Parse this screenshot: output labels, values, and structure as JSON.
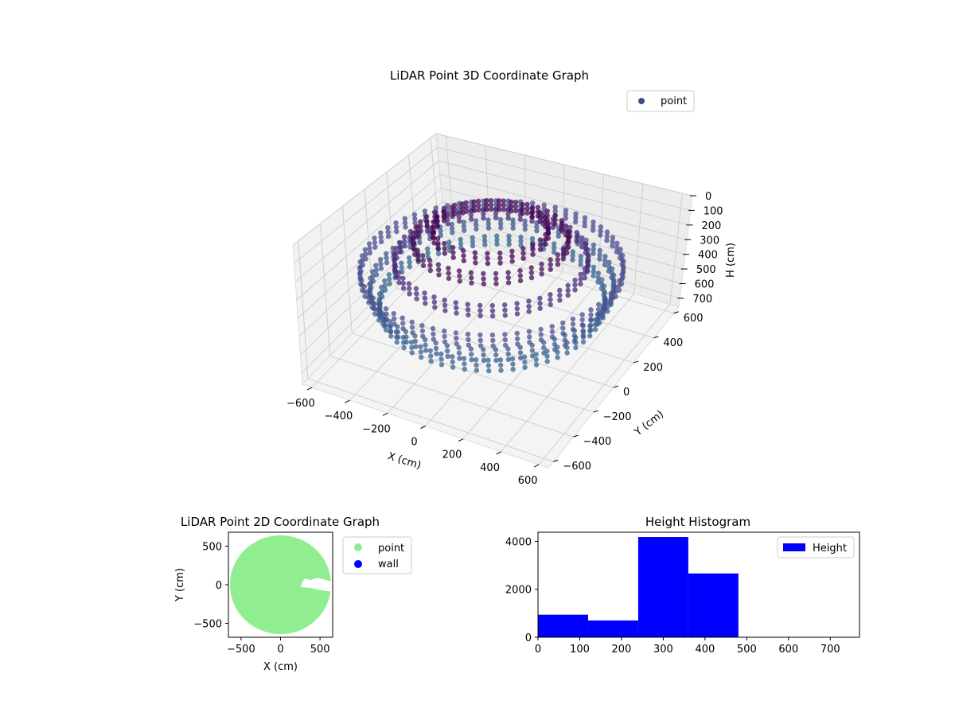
{
  "chart_data": [
    {
      "type": "scatter",
      "projection": "3d",
      "title": "LiDAR Point 3D Coordinate Graph",
      "xlabel": "X (cm)",
      "ylabel": "Y (cm)",
      "zlabel": "H (cm)",
      "xticks": [
        "−600",
        "−400",
        "−200",
        "0",
        "200",
        "400",
        "600"
      ],
      "yticks": [
        "−600",
        "−400",
        "−200",
        "0",
        "200",
        "400",
        "600"
      ],
      "zticks": [
        "0",
        "100",
        "200",
        "300",
        "400",
        "500",
        "600",
        "700"
      ],
      "xlim": [
        -650,
        650
      ],
      "ylim": [
        -650,
        650
      ],
      "zlim": [
        0,
        760
      ],
      "zaxis_inverted": true,
      "colormap": "viridis",
      "grid": true,
      "legend": {
        "placement": "top-right",
        "entries": [
          {
            "label": "point",
            "color": "#3b4b8c"
          }
        ]
      },
      "series": [
        {
          "name": "point",
          "shape": "ring",
          "rings": [
            {
              "r": 600,
              "h": 300,
              "color": "#4a4f8f"
            },
            {
              "r": 560,
              "h": 400,
              "color": "#3e5a8e"
            },
            {
              "r": 520,
              "h": 480,
              "color": "#35648d"
            },
            {
              "r": 440,
              "h": 240,
              "color": "#472c7a"
            },
            {
              "r": 350,
              "h": 120,
              "color": "#440f56"
            },
            {
              "r": 260,
              "h": 60,
              "color": "#440154"
            }
          ]
        }
      ]
    },
    {
      "type": "scatter",
      "title": "LiDAR Point 2D Coordinate Graph",
      "xlabel": "X (cm)",
      "ylabel": "Y (cm)",
      "xticks": [
        "−500",
        "0",
        "500"
      ],
      "yticks": [
        "500",
        "0",
        "−500"
      ],
      "xlim": [
        -660,
        660
      ],
      "ylim": [
        -680,
        680
      ],
      "legend": {
        "placement": "right",
        "entries": [
          {
            "label": "point",
            "color": "#90ee90"
          },
          {
            "label": "wall",
            "color": "#0000ff"
          }
        ]
      },
      "series": [
        {
          "name": "point",
          "shape": "filled-disk",
          "radius": 640,
          "color": "#90ee90"
        },
        {
          "name": "wall",
          "color": "#0000ff",
          "points": []
        }
      ]
    },
    {
      "type": "bar",
      "subtype": "histogram",
      "title": "Height Histogram",
      "xticks": [
        "0",
        "100",
        "200",
        "300",
        "400",
        "500",
        "600",
        "700"
      ],
      "yticks": [
        "0",
        "2000",
        "4000"
      ],
      "xlim": [
        0,
        770
      ],
      "ylim": [
        0,
        4380
      ],
      "bin_edges": [
        0,
        120,
        240,
        360,
        480
      ],
      "values": [
        940,
        700,
        4180,
        2660
      ],
      "color": "#0000ff",
      "legend": {
        "placement": "top-right",
        "entries": [
          {
            "label": "Height",
            "color": "#0000ff"
          }
        ]
      }
    }
  ]
}
